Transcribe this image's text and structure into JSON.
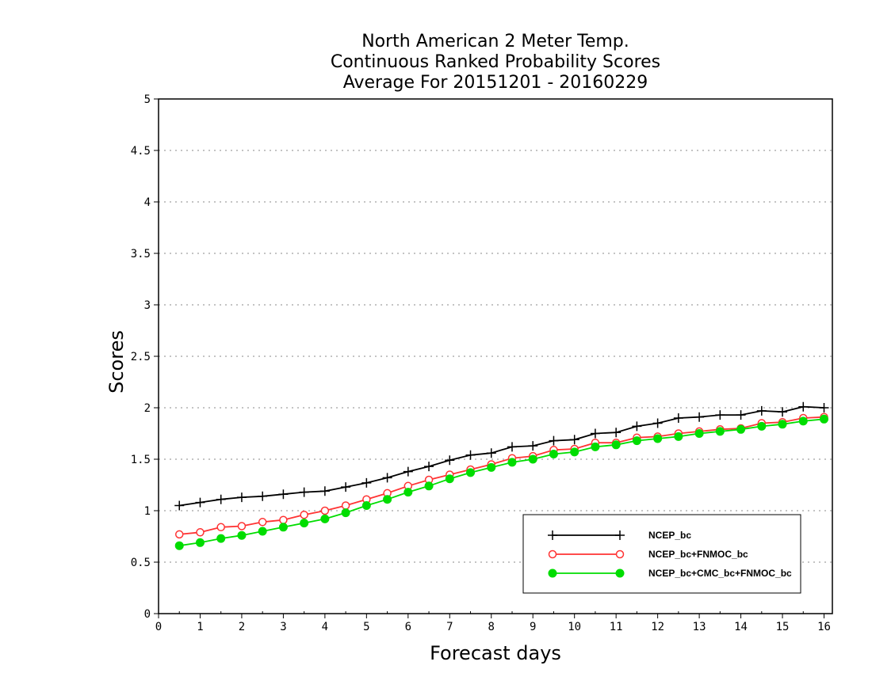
{
  "chart_data": {
    "type": "line",
    "title_lines": [
      "North American 2 Meter Temp.",
      "Continuous Ranked Probability Scores",
      "Average For 20151201 - 20160229"
    ],
    "xlabel": "Forecast days",
    "ylabel": "Scores",
    "xlim": [
      0,
      16.2
    ],
    "ylim": [
      0,
      5
    ],
    "xticks": [
      0,
      1,
      2,
      3,
      4,
      5,
      6,
      7,
      8,
      9,
      10,
      11,
      12,
      13,
      14,
      15,
      16
    ],
    "yticks": [
      0,
      0.5,
      1,
      1.5,
      2,
      2.5,
      3,
      3.5,
      4,
      4.5,
      5
    ],
    "ytick_labels": [
      "0",
      "0.5",
      "1",
      "1.5",
      "2",
      "2.5",
      "3",
      "3.5",
      "4",
      "4.5",
      "5"
    ],
    "grid": "horizontal dotted",
    "legend_position": "bottom-right",
    "x": [
      0.5,
      1.0,
      1.5,
      2.0,
      2.5,
      3.0,
      3.5,
      4.0,
      4.5,
      5.0,
      5.5,
      6.0,
      6.5,
      7.0,
      7.5,
      8.0,
      8.5,
      9.0,
      9.5,
      10.0,
      10.5,
      11.0,
      11.5,
      12.0,
      12.5,
      13.0,
      13.5,
      14.0,
      14.5,
      15.0,
      15.5,
      16.0
    ],
    "series": [
      {
        "name": "NCEP_bc",
        "color": "#000000",
        "marker": "plus",
        "values": [
          1.05,
          1.08,
          1.11,
          1.13,
          1.14,
          1.16,
          1.18,
          1.19,
          1.23,
          1.27,
          1.32,
          1.38,
          1.43,
          1.49,
          1.54,
          1.56,
          1.62,
          1.63,
          1.68,
          1.69,
          1.75,
          1.76,
          1.82,
          1.85,
          1.9,
          1.91,
          1.93,
          1.93,
          1.97,
          1.96,
          2.01,
          2.0
        ]
      },
      {
        "name": "NCEP_bc+FNMOC_bc",
        "color": "#ff3333",
        "marker": "open-circle",
        "values": [
          0.77,
          0.79,
          0.84,
          0.85,
          0.89,
          0.91,
          0.96,
          1.0,
          1.05,
          1.11,
          1.17,
          1.24,
          1.3,
          1.35,
          1.4,
          1.45,
          1.51,
          1.53,
          1.59,
          1.6,
          1.66,
          1.66,
          1.71,
          1.72,
          1.75,
          1.77,
          1.79,
          1.8,
          1.85,
          1.86,
          1.9,
          1.91
        ]
      },
      {
        "name": "NCEP_bc+CMC_bc+FNMOC_bc",
        "color": "#00dd00",
        "marker": "filled-circle",
        "values": [
          0.66,
          0.69,
          0.73,
          0.76,
          0.8,
          0.84,
          0.88,
          0.92,
          0.98,
          1.05,
          1.11,
          1.18,
          1.24,
          1.31,
          1.37,
          1.42,
          1.47,
          1.5,
          1.55,
          1.57,
          1.62,
          1.64,
          1.68,
          1.7,
          1.72,
          1.75,
          1.77,
          1.79,
          1.82,
          1.84,
          1.87,
          1.89
        ]
      }
    ]
  }
}
